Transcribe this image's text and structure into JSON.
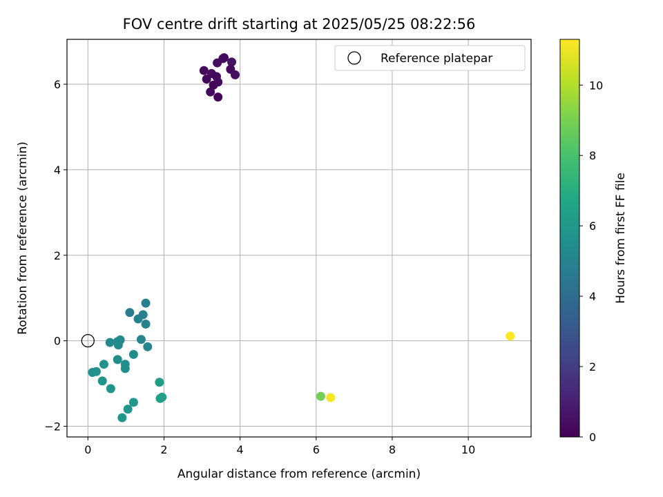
{
  "chart_data": {
    "type": "scatter",
    "title": "FOV centre drift starting at 2025/05/25 08:22:56",
    "xlabel": "Angular distance from reference (arcmin)",
    "ylabel": "Rotation from reference (arcmin)",
    "xlim": [
      -0.55,
      11.65
    ],
    "ylim": [
      -2.25,
      7.05
    ],
    "xticks": [
      0,
      2,
      4,
      6,
      8,
      10
    ],
    "yticks": [
      -2,
      0,
      2,
      4,
      6
    ],
    "grid": true,
    "legend": {
      "position": "upper right",
      "entries": [
        "Reference platepar"
      ]
    },
    "reference_point": {
      "label": "Reference platepar",
      "x": 0,
      "y": 0
    },
    "colormap": "viridis",
    "colorbar": {
      "label": "Hours from first FF file",
      "min": 0,
      "max": 11.3,
      "ticks": [
        0,
        2,
        4,
        6,
        8,
        10
      ]
    },
    "points": [
      {
        "x": 3.05,
        "y": 6.32,
        "c": 0.2
      },
      {
        "x": 3.12,
        "y": 6.12,
        "c": 0.2
      },
      {
        "x": 3.25,
        "y": 6.25,
        "c": 0.3
      },
      {
        "x": 3.38,
        "y": 6.18,
        "c": 0.2
      },
      {
        "x": 3.42,
        "y": 6.05,
        "c": 0.3
      },
      {
        "x": 3.3,
        "y": 5.98,
        "c": 0.2
      },
      {
        "x": 3.22,
        "y": 5.82,
        "c": 0.3
      },
      {
        "x": 3.42,
        "y": 5.7,
        "c": 0.2
      },
      {
        "x": 3.4,
        "y": 6.5,
        "c": 0.4
      },
      {
        "x": 3.55,
        "y": 6.6,
        "c": 0.4
      },
      {
        "x": 3.58,
        "y": 6.62,
        "c": 0.3
      },
      {
        "x": 3.78,
        "y": 6.52,
        "c": 0.5
      },
      {
        "x": 3.75,
        "y": 6.35,
        "c": 0.3
      },
      {
        "x": 3.87,
        "y": 6.22,
        "c": 0.4
      },
      {
        "x": 1.1,
        "y": 0.66,
        "c": 4.8
      },
      {
        "x": 1.52,
        "y": 0.88,
        "c": 4.9
      },
      {
        "x": 1.45,
        "y": 0.61,
        "c": 4.9
      },
      {
        "x": 1.32,
        "y": 0.51,
        "c": 4.9
      },
      {
        "x": 1.52,
        "y": 0.39,
        "c": 5.0
      },
      {
        "x": 1.4,
        "y": 0.03,
        "c": 5.1
      },
      {
        "x": 1.57,
        "y": -0.14,
        "c": 5.2
      },
      {
        "x": 0.58,
        "y": -0.04,
        "c": 5.3
      },
      {
        "x": 0.78,
        "y": -0.02,
        "c": 5.3
      },
      {
        "x": 0.85,
        "y": 0.02,
        "c": 5.4
      },
      {
        "x": 0.8,
        "y": -0.1,
        "c": 5.4
      },
      {
        "x": 1.2,
        "y": -0.32,
        "c": 5.5
      },
      {
        "x": 0.78,
        "y": -0.44,
        "c": 5.5
      },
      {
        "x": 0.98,
        "y": -0.55,
        "c": 5.6
      },
      {
        "x": 0.98,
        "y": -0.65,
        "c": 5.6
      },
      {
        "x": 0.42,
        "y": -0.55,
        "c": 5.7
      },
      {
        "x": 0.12,
        "y": -0.74,
        "c": 5.7
      },
      {
        "x": 0.22,
        "y": -0.72,
        "c": 5.7
      },
      {
        "x": 0.38,
        "y": -0.94,
        "c": 5.8
      },
      {
        "x": 0.6,
        "y": -1.12,
        "c": 5.8
      },
      {
        "x": 1.88,
        "y": -0.97,
        "c": 6.3
      },
      {
        "x": 1.95,
        "y": -1.32,
        "c": 6.4
      },
      {
        "x": 1.9,
        "y": -1.35,
        "c": 6.4
      },
      {
        "x": 1.2,
        "y": -1.44,
        "c": 6.0
      },
      {
        "x": 1.05,
        "y": -1.6,
        "c": 5.9
      },
      {
        "x": 0.9,
        "y": -1.8,
        "c": 5.9
      },
      {
        "x": 6.12,
        "y": -1.3,
        "c": 8.9
      },
      {
        "x": 6.38,
        "y": -1.33,
        "c": 11.2
      },
      {
        "x": 11.1,
        "y": 0.11,
        "c": 11.3
      }
    ]
  }
}
